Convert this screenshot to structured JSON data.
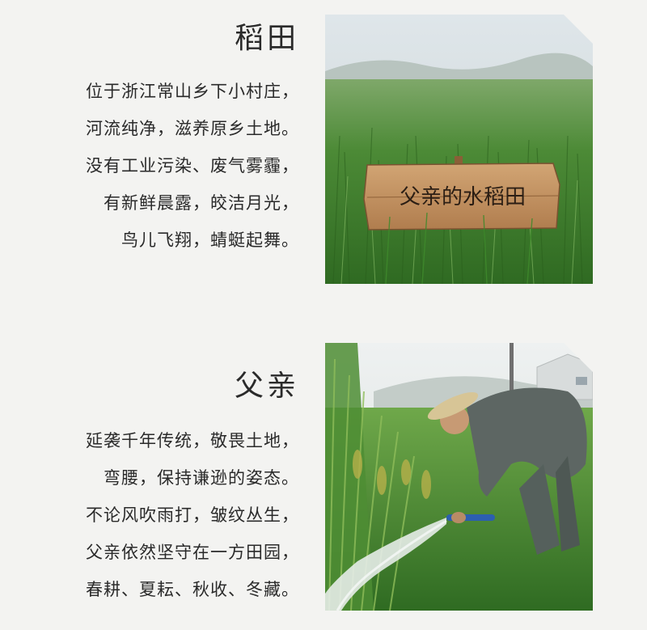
{
  "sections": [
    {
      "title": "稻田",
      "lines": [
        "位于浙江常山乡下小村庄，",
        "河流纯净，滋养原乡土地。",
        "没有工业污染、废气雾霾，",
        "有新鲜晨露，皎洁月光，",
        "鸟儿飞翔，蜻蜓起舞。"
      ],
      "photo_sign": "父亲的水稻田"
    },
    {
      "title": "父亲",
      "lines": [
        "延袭千年传统，敬畏土地，",
        "弯腰，保持谦逊的姿态。",
        "不论风吹雨打，皱纹丛生，",
        "父亲依然坚守在一方田园，",
        "春耕、夏耘、秋收、冬藏。"
      ]
    }
  ],
  "colors": {
    "background": "#f3f3f1",
    "text": "#2a2a2a",
    "rice_green": "#3f7a2a"
  }
}
